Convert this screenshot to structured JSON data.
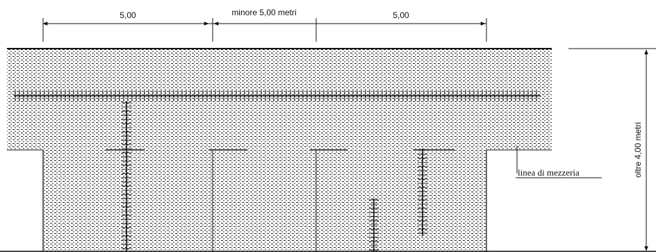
{
  "dimensions": {
    "left": "5,00",
    "middle": "minore 5,00 metri",
    "right": "5,00",
    "height": "oltre 4,00 metri"
  },
  "labels": {
    "centerline": "linea di mezzeria"
  }
}
